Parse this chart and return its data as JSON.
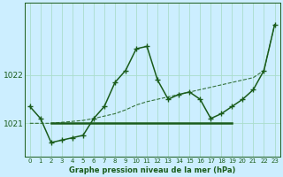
{
  "xlabel": "Graphe pression niveau de la mer (hPa)",
  "bg_color": "#cceeff",
  "grid_color": "#aaddcc",
  "line_color": "#1a5c1a",
  "ylim": [
    1020.3,
    1023.5
  ],
  "yticks": [
    1021,
    1022
  ],
  "xlim": [
    -0.5,
    23.5
  ],
  "x_ticks": [
    0,
    1,
    2,
    3,
    4,
    5,
    6,
    7,
    8,
    9,
    10,
    11,
    12,
    13,
    14,
    15,
    16,
    17,
    18,
    19,
    20,
    21,
    22,
    23
  ],
  "line_measured": [
    1021.35,
    1021.1,
    1020.6,
    1020.65,
    1020.7,
    1020.75,
    1021.1,
    1021.35,
    1021.85,
    1022.1,
    1022.55,
    1022.6,
    1021.9,
    1021.5,
    1021.6,
    1021.65,
    1021.5,
    1021.1,
    1021.2,
    1021.35,
    1021.5,
    1021.7,
    1022.1,
    1023.05
  ],
  "line_forecast": [
    1021.0,
    1021.0,
    1021.0,
    1021.02,
    1021.04,
    1021.06,
    1021.1,
    1021.15,
    1021.2,
    1021.28,
    1021.38,
    1021.45,
    1021.5,
    1021.55,
    1021.6,
    1021.65,
    1021.7,
    1021.75,
    1021.8,
    1021.85,
    1021.9,
    1021.95,
    1022.1,
    1023.05
  ],
  "line_flat": {
    "x0": 2,
    "x1": 19,
    "y": 1021.0
  },
  "marker_style": "+",
  "lw_main": 1.1,
  "lw_flat": 1.8,
  "markersize": 5,
  "xlabel_fontsize": 6,
  "tick_fontsize": 5
}
